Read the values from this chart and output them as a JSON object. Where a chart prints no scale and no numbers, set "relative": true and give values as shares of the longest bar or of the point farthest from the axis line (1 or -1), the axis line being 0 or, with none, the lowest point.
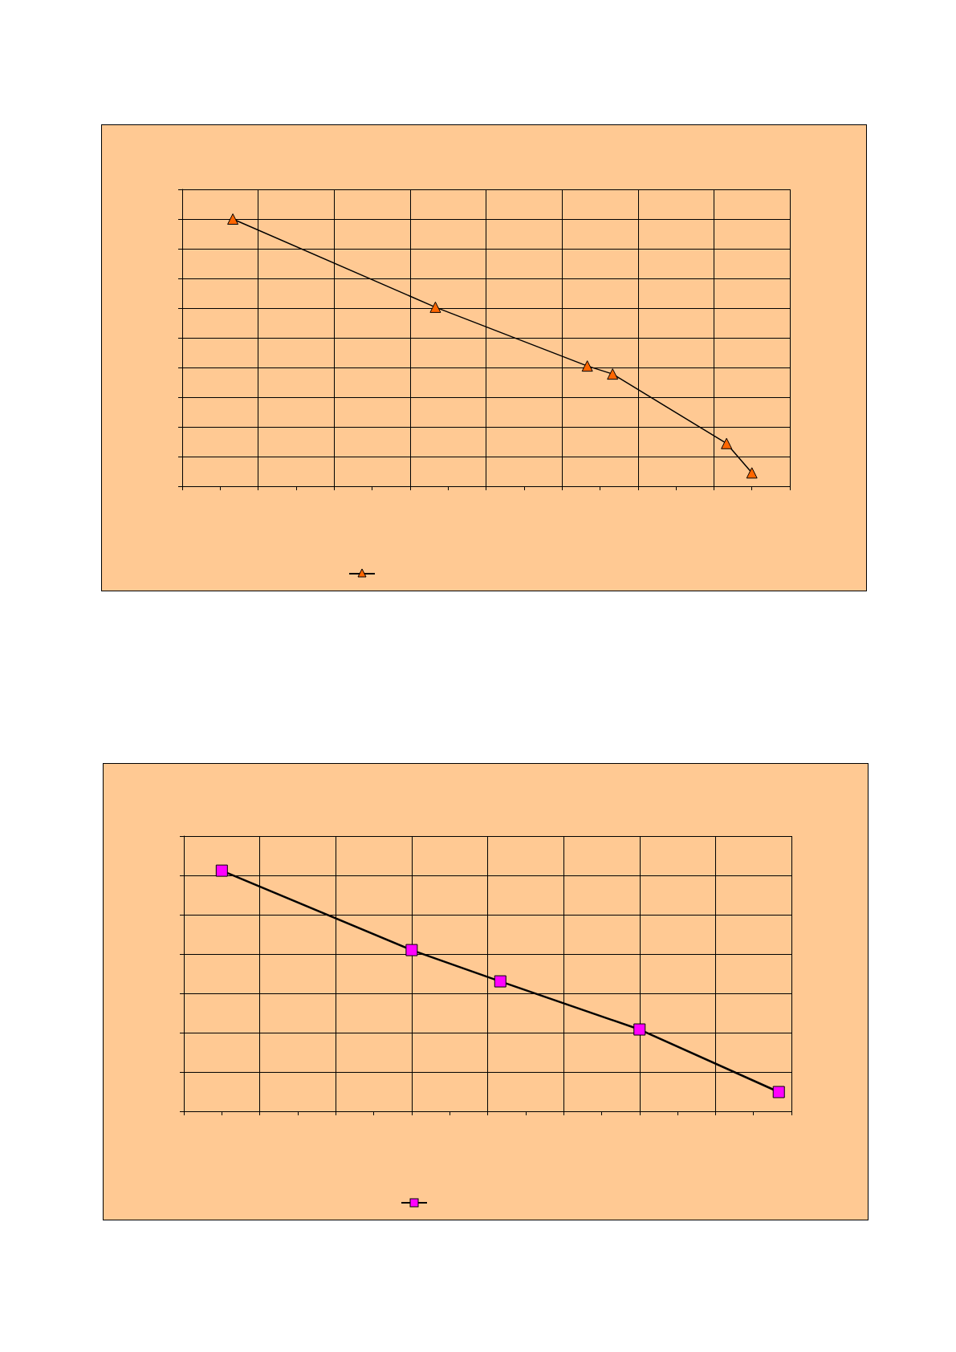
{
  "chart_data": [
    {
      "type": "line",
      "relative": true,
      "categories": [
        null,
        null,
        null,
        null,
        null,
        null,
        null,
        null,
        null,
        null,
        null,
        null,
        null,
        null,
        null,
        null,
        null,
        null,
        null,
        null,
        null,
        null,
        null,
        null,
        null,
        null,
        null,
        null,
        null,
        null,
        null,
        null,
        null,
        null,
        null,
        null,
        null,
        null,
        null,
        null,
        null,
        null,
        null,
        null,
        null,
        null,
        null,
        null,
        null
      ],
      "series": [
        {
          "color": "#000000",
          "values": [
            null,
            null,
            null,
            null,
            1,
            null,
            null,
            null,
            null,
            null,
            null,
            null,
            null,
            null,
            null,
            null,
            null,
            null,
            null,
            null,
            0.67,
            null,
            null,
            null,
            null,
            null,
            null,
            null,
            null,
            null,
            null,
            null,
            0.45,
            null,
            0.42,
            null,
            null,
            null,
            null,
            null,
            null,
            null,
            null,
            0.16,
            null,
            0.05,
            null,
            null,
            null
          ],
          "colors": [
            null,
            null,
            null,
            null,
            "#ff6600",
            null,
            null,
            null,
            null,
            null,
            null,
            null,
            null,
            null,
            null,
            null,
            null,
            null,
            null,
            null,
            "#ff6600",
            null,
            null,
            null,
            null,
            null,
            null,
            null,
            null,
            null,
            null,
            null,
            "#ff6600",
            null,
            "#ff6600",
            null,
            null,
            null,
            null,
            null,
            null,
            null,
            null,
            "#ff6600",
            null,
            "#ff6600",
            null,
            null,
            null
          ]
        }
      ],
      "marker": "triangle",
      "grid": true
    },
    {
      "type": "line",
      "relative": true,
      "categories": [
        null,
        null,
        null,
        null,
        null,
        null,
        null,
        null,
        null,
        null,
        null,
        null,
        null,
        null,
        null,
        null,
        null,
        null,
        null,
        null,
        null,
        null,
        null,
        null,
        null,
        null,
        null,
        null,
        null,
        null,
        null,
        null,
        null,
        null,
        null,
        null,
        null,
        null,
        null,
        null,
        null,
        null,
        null,
        null,
        null,
        null,
        null,
        null,
        null
      ],
      "series": [
        {
          "color": "#000000",
          "values": [
            null,
            null,
            null,
            1,
            null,
            null,
            null,
            null,
            null,
            null,
            null,
            null,
            null,
            null,
            null,
            null,
            null,
            null,
            0.67,
            null,
            null,
            null,
            null,
            null,
            null,
            0.54,
            null,
            null,
            null,
            null,
            null,
            null,
            null,
            null,
            null,
            null,
            0.34,
            null,
            null,
            null,
            null,
            null,
            null,
            null,
            null,
            null,
            null,
            0.08,
            null
          ],
          "colors": [
            null,
            null,
            null,
            "#ff00ff",
            null,
            null,
            null,
            null,
            null,
            null,
            null,
            null,
            null,
            null,
            null,
            null,
            null,
            null,
            "#ff00ff",
            null,
            null,
            null,
            null,
            null,
            null,
            "#ff00ff",
            null,
            null,
            null,
            null,
            null,
            null,
            null,
            null,
            null,
            null,
            "#ff00ff",
            null,
            null,
            null,
            null,
            null,
            null,
            null,
            null,
            null,
            null,
            "#ff00ff",
            null
          ]
        }
      ],
      "marker": "square",
      "grid": true
    }
  ]
}
